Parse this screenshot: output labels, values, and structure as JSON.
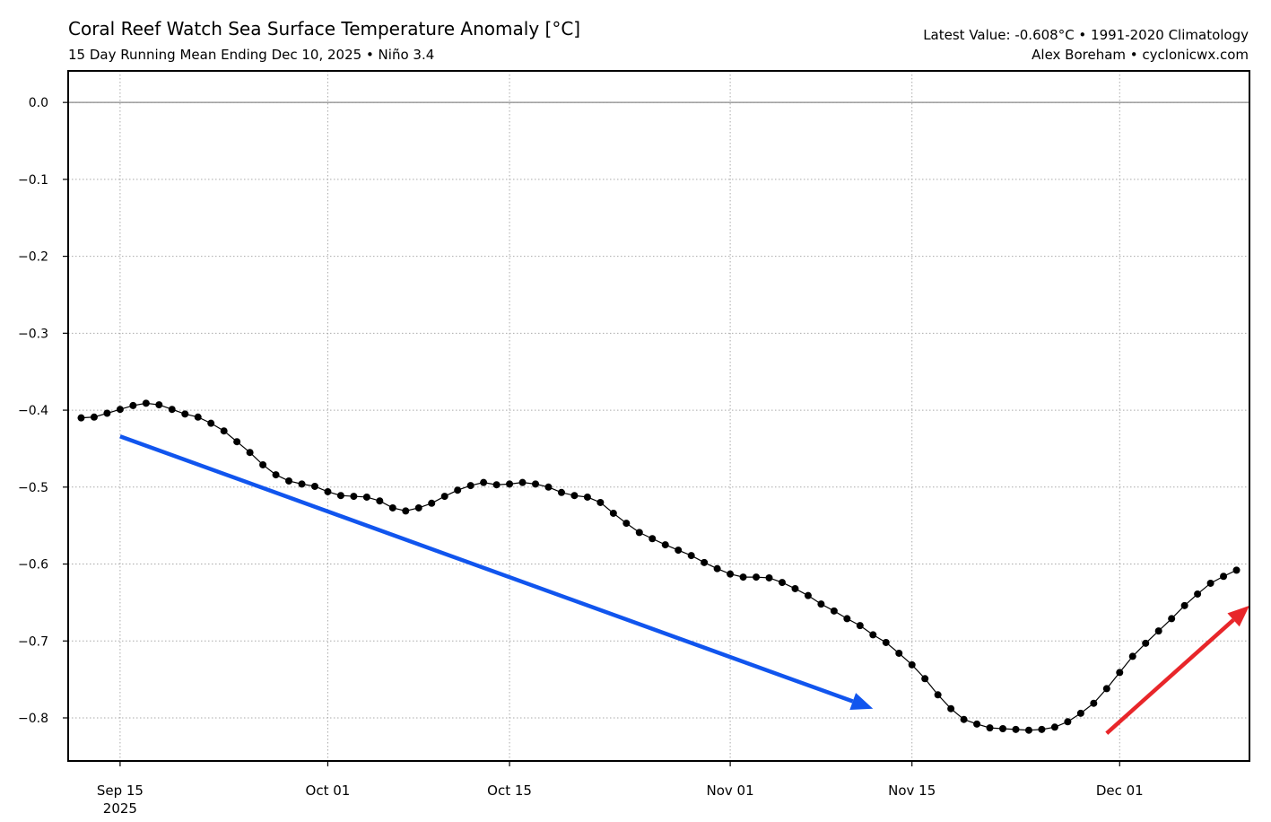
{
  "header": {
    "title": "Coral Reef Watch Sea Surface Temperature Anomaly [°C]",
    "subtitle": "15 Day Running Mean Ending Dec 10, 2025 • Niño 3.4",
    "info_line1": "Latest Value: -0.608°C • 1991-2020 Climatology",
    "info_line2": "Alex Boreham • cyclonicwx.com"
  },
  "chart_data": {
    "type": "line",
    "title": "Coral Reef Watch Sea Surface Temperature Anomaly [°C]",
    "subtitle": "15 Day Running Mean Ending Dec 10, 2025 • Niño 3.4",
    "start_date": "2025-09-12",
    "end_date": "2025-12-10",
    "x_step": "1 day",
    "values": [
      -0.41,
      -0.409,
      -0.404,
      -0.399,
      -0.394,
      -0.391,
      -0.393,
      -0.399,
      -0.405,
      -0.409,
      -0.417,
      -0.427,
      -0.441,
      -0.455,
      -0.471,
      -0.484,
      -0.492,
      -0.496,
      -0.499,
      -0.506,
      -0.511,
      -0.512,
      -0.513,
      -0.518,
      -0.527,
      -0.531,
      -0.527,
      -0.521,
      -0.512,
      -0.504,
      -0.498,
      -0.494,
      -0.497,
      -0.496,
      -0.494,
      -0.496,
      -0.5,
      -0.507,
      -0.511,
      -0.513,
      -0.52,
      -0.534,
      -0.547,
      -0.559,
      -0.567,
      -0.575,
      -0.582,
      -0.589,
      -0.598,
      -0.606,
      -0.613,
      -0.617,
      -0.617,
      -0.618,
      -0.624,
      -0.632,
      -0.641,
      -0.652,
      -0.661,
      -0.671,
      -0.68,
      -0.692,
      -0.702,
      -0.716,
      -0.731,
      -0.749,
      -0.77,
      -0.788,
      -0.802,
      -0.808,
      -0.813,
      -0.814,
      -0.815,
      -0.816,
      -0.815,
      -0.812,
      -0.805,
      -0.794,
      -0.781,
      -0.762,
      -0.741,
      -0.72,
      -0.703,
      -0.687,
      -0.671,
      -0.654,
      -0.639,
      -0.625,
      -0.616,
      -0.608
    ],
    "xlim": [
      "2025-09-11",
      "2025-12-11"
    ],
    "ylim": [
      -0.856,
      0.041
    ],
    "x_ticks": [
      {
        "date": "2025-09-15",
        "label": "Sep 15",
        "sublabel": "2025"
      },
      {
        "date": "2025-10-01",
        "label": "Oct 01"
      },
      {
        "date": "2025-10-15",
        "label": "Oct 15"
      },
      {
        "date": "2025-11-01",
        "label": "Nov 01"
      },
      {
        "date": "2025-11-15",
        "label": "Nov 15"
      },
      {
        "date": "2025-12-01",
        "label": "Dec 01"
      }
    ],
    "y_ticks": [
      0.0,
      -0.1,
      -0.2,
      -0.3,
      -0.4,
      -0.5,
      -0.6,
      -0.7,
      -0.8
    ],
    "y_tick_labels": [
      "0.0",
      "−0.1",
      "−0.2",
      "−0.3",
      "−0.4",
      "−0.5",
      "−0.6",
      "−0.7",
      "−0.8"
    ],
    "zero_line": 0.0,
    "grid": true,
    "series_color": "#000000",
    "annotations": [
      {
        "type": "arrow",
        "color": "#1155ee",
        "from": [
          "2025-09-15",
          -0.434
        ],
        "to": [
          "2025-11-12",
          -0.788
        ]
      },
      {
        "type": "arrow",
        "color": "#e8262a",
        "from": [
          "2025-11-30",
          -0.82
        ],
        "to": [
          "2025-12-11",
          -0.654
        ]
      }
    ]
  }
}
